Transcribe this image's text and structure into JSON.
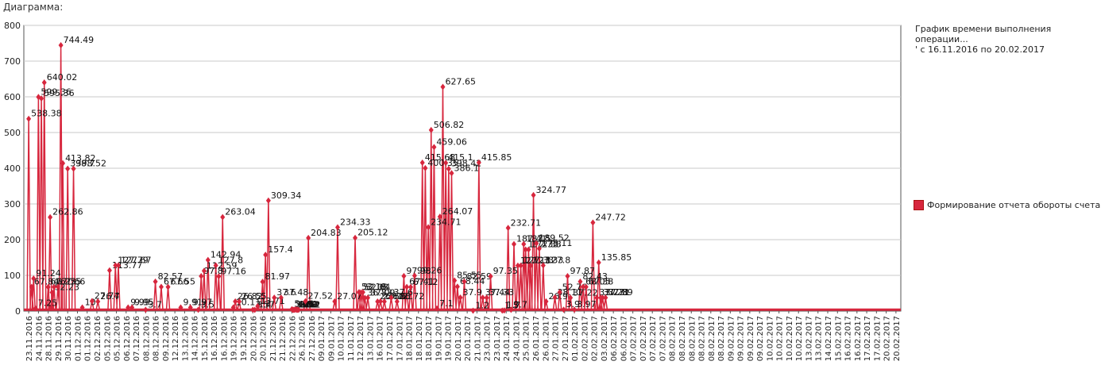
{
  "caption": "Диаграмма:",
  "legend": {
    "title": "График времени выполнения операции...\n' с 16.11.2016 по 20.02.2017",
    "series_name": "Формирование отчета обороты счета"
  },
  "colors": {
    "series": "#d7263d",
    "grid": "#c8c8c8",
    "axis": "#555555"
  },
  "chart_data": {
    "type": "line",
    "ylim": [
      0,
      800
    ],
    "yticks": [
      0,
      100,
      200,
      300,
      400,
      500,
      600,
      700,
      800
    ],
    "grid": true,
    "legend_position": "right",
    "xlabels": [
      "23.11.2016",
      "24.11.2016",
      "28.11.2016",
      "29.11.2016",
      "30.11.2016",
      "01.12.2016",
      "01.12.2016",
      "02.12.2016",
      "05.12.2016",
      "05.12.2016",
      "06.12.2016",
      "07.12.2016",
      "08.12.2016",
      "08.12.2016",
      "09.12.2016",
      "12.12.2016",
      "13.12.2016",
      "14.12.2016",
      "15.12.2016",
      "16.12.2016",
      "16.12.2016",
      "19.12.2016",
      "19.12.2016",
      "20.12.2016",
      "20.12.2016",
      "21.12.2016",
      "21.12.2016",
      "22.12.2016",
      "26.12.2016",
      "27.12.2016",
      "09.01.2017",
      "09.01.2017",
      "10.01.2017",
      "11.01.2017",
      "12.01.2017",
      "13.01.2017",
      "16.01.2017",
      "17.01.2017",
      "17.01.2017",
      "18.01.2017",
      "18.01.2017",
      "18.01.2017",
      "19.01.2017",
      "19.01.2017",
      "20.01.2017",
      "20.01.2017",
      "21.01.2017",
      "23.01.2017",
      "23.01.2017",
      "24.01.2017",
      "24.01.2017",
      "25.01.2017",
      "26.01.2017",
      "26.01.2017",
      "27.01.2017",
      "27.01.2017",
      "01.02.2017",
      "02.02.2017",
      "02.02.2017",
      "03.02.2017",
      "06.02.2017",
      "06.02.2017",
      "07.02.2017",
      "07.02.2017",
      "07.02.2017",
      "07.02.2017",
      "08.02.2017",
      "08.02.2017",
      "08.02.2017",
      "08.02.2017",
      "08.02.2017",
      "08.02.2017",
      "09.02.2017",
      "09.02.2017",
      "09.02.2017",
      "09.02.2017",
      "10.02.2017",
      "10.02.2017",
      "10.02.2017",
      "10.02.2017",
      "13.02.2017",
      "13.02.2017",
      "14.02.2017",
      "15.02.2017",
      "16.02.2017",
      "16.02.2017",
      "17.02.2017",
      "17.02.2017",
      "20.02.2017",
      "20.02.2017"
    ],
    "points": [
      {
        "i": 0,
        "y": 538.38
      },
      {
        "i": 0.3,
        "y": 67.84
      },
      {
        "i": 0.5,
        "y": 91.24
      },
      {
        "i": 0.7,
        "y": 7.25
      },
      {
        "i": 1,
        "y": 599.36
      },
      {
        "i": 1.3,
        "y": 595.36
      },
      {
        "i": 1.6,
        "y": 640.02
      },
      {
        "i": 2,
        "y": 67.27
      },
      {
        "i": 2.2,
        "y": 262.86
      },
      {
        "i": 2.4,
        "y": 52.23
      },
      {
        "i": 2.6,
        "y": 67.55
      },
      {
        "i": 3,
        "y": 67.66
      },
      {
        "i": 3.3,
        "y": 744.49
      },
      {
        "i": 3.5,
        "y": 413.82
      },
      {
        "i": 4,
        "y": 398.7
      },
      {
        "i": 4.6,
        "y": 398.52
      },
      {
        "i": 5.5,
        "y": 10
      },
      {
        "i": 6.5,
        "y": 27.74
      },
      {
        "i": 7.1,
        "y": 26.7
      },
      {
        "i": 8.3,
        "y": 113.77
      },
      {
        "i": 8.9,
        "y": 127.79
      },
      {
        "i": 9.2,
        "y": 127.67
      },
      {
        "i": 10.2,
        "y": 9.99
      },
      {
        "i": 10.6,
        "y": 9.95
      },
      {
        "i": 12,
        "y": 3.7
      },
      {
        "i": 13,
        "y": 82.57
      },
      {
        "i": 13.6,
        "y": 67.66
      },
      {
        "i": 14.3,
        "y": 67.55
      },
      {
        "i": 15.6,
        "y": 9.91
      },
      {
        "i": 16.6,
        "y": 9.97
      },
      {
        "i": 17.4,
        "y": 3.5
      },
      {
        "i": 17.7,
        "y": 97.8
      },
      {
        "i": 18,
        "y": 112.59
      },
      {
        "i": 18.4,
        "y": 142.94
      },
      {
        "i": 19.2,
        "y": 127.8
      },
      {
        "i": 19.5,
        "y": 97.16
      },
      {
        "i": 19.9,
        "y": 263.04
      },
      {
        "i": 21,
        "y": 10.11
      },
      {
        "i": 21.2,
        "y": 26.82
      },
      {
        "i": 21.6,
        "y": 26.55
      },
      {
        "i": 23,
        "y": 3.57
      },
      {
        "i": 23.2,
        "y": 3.4
      },
      {
        "i": 23.5,
        "y": 13.71
      },
      {
        "i": 24,
        "y": 81.97
      },
      {
        "i": 24.3,
        "y": 157.4
      },
      {
        "i": 24.6,
        "y": 309.34
      },
      {
        "i": 25.2,
        "y": 37.6
      },
      {
        "i": 25.9,
        "y": 37.48
      },
      {
        "i": 27,
        "y": 5.06
      },
      {
        "i": 27.1,
        "y": 3.55
      },
      {
        "i": 27.2,
        "y": 3.45
      },
      {
        "i": 27.3,
        "y": 3.62
      },
      {
        "i": 27.4,
        "y": 4.89
      },
      {
        "i": 27.5,
        "y": 3.52
      },
      {
        "i": 27.6,
        "y": 3.49
      },
      {
        "i": 27.7,
        "y": 3.72
      },
      {
        "i": 28.4,
        "y": 27.52
      },
      {
        "i": 28.7,
        "y": 204.83
      },
      {
        "i": 31.4,
        "y": 27.07
      },
      {
        "i": 31.7,
        "y": 234.33
      },
      {
        "i": 33.5,
        "y": 205.12
      },
      {
        "i": 33.9,
        "y": 53.18
      },
      {
        "i": 34.1,
        "y": 52.08
      },
      {
        "i": 34.3,
        "y": 52.64
      },
      {
        "i": 34.5,
        "y": 36.83
      },
      {
        "i": 34.8,
        "y": 37.09
      },
      {
        "i": 35.8,
        "y": 26.68
      },
      {
        "i": 36.1,
        "y": 27.12
      },
      {
        "i": 36.5,
        "y": 26.61
      },
      {
        "i": 37.2,
        "y": 37.6
      },
      {
        "i": 37.8,
        "y": 26.72
      },
      {
        "i": 38.5,
        "y": 97.98
      },
      {
        "i": 38.8,
        "y": 67.41
      },
      {
        "i": 39.2,
        "y": 67.12
      },
      {
        "i": 39.6,
        "y": 99.26
      },
      {
        "i": 40.4,
        "y": 415.68
      },
      {
        "i": 40.7,
        "y": 400.35
      },
      {
        "i": 41,
        "y": 234.71
      },
      {
        "i": 41.3,
        "y": 506.82
      },
      {
        "i": 41.6,
        "y": 459.06
      },
      {
        "i": 41.9,
        "y": 7.1
      },
      {
        "i": 42.2,
        "y": 264.07
      },
      {
        "i": 42.5,
        "y": 627.65
      },
      {
        "i": 42.8,
        "y": 415.1
      },
      {
        "i": 43.1,
        "y": 398.42
      },
      {
        "i": 43.4,
        "y": 386.1
      },
      {
        "i": 43.7,
        "y": 85.55
      },
      {
        "i": 44,
        "y": 68.44
      },
      {
        "i": 44.3,
        "y": 37.9
      },
      {
        "i": 44.7,
        "y": 82.59
      },
      {
        "i": 45.6,
        "y": 1.2
      },
      {
        "i": 46.2,
        "y": 415.85
      },
      {
        "i": 46.6,
        "y": 37.44
      },
      {
        "i": 47,
        "y": 37.33
      },
      {
        "i": 47.4,
        "y": 97.35
      },
      {
        "i": 48.6,
        "y": 1.5
      },
      {
        "i": 48.8,
        "y": 1.7
      },
      {
        "i": 49.2,
        "y": 232.71
      },
      {
        "i": 49.5,
        "y": 3.7
      },
      {
        "i": 49.8,
        "y": 187.41
      },
      {
        "i": 50.2,
        "y": 127.13
      },
      {
        "i": 50.5,
        "y": 127.33
      },
      {
        "i": 50.8,
        "y": 187.5
      },
      {
        "i": 51,
        "y": 172.33
      },
      {
        "i": 51.3,
        "y": 172.33
      },
      {
        "i": 51.5,
        "y": 127.33
      },
      {
        "i": 51.8,
        "y": 324.77
      },
      {
        "i": 52.1,
        "y": 189.52
      },
      {
        "i": 52.4,
        "y": 175.11
      },
      {
        "i": 52.8,
        "y": 127.8
      },
      {
        "i": 53.1,
        "y": 26.9
      },
      {
        "i": 54,
        "y": 38.11
      },
      {
        "i": 54.5,
        "y": 52.76
      },
      {
        "i": 54.9,
        "y": 3.9
      },
      {
        "i": 55.3,
        "y": 97.87
      },
      {
        "i": 55.6,
        "y": 37.22
      },
      {
        "i": 56,
        "y": 3.97
      },
      {
        "i": 56.6,
        "y": 82.43
      },
      {
        "i": 56.9,
        "y": 68.05
      },
      {
        "i": 57.2,
        "y": 67.38
      },
      {
        "i": 57.9,
        "y": 247.72
      },
      {
        "i": 58.3,
        "y": 37.27
      },
      {
        "i": 58.5,
        "y": 135.85
      },
      {
        "i": 58.7,
        "y": 37.28
      },
      {
        "i": 58.9,
        "y": 37.31
      },
      {
        "i": 59.2,
        "y": 37.39
      }
    ]
  }
}
